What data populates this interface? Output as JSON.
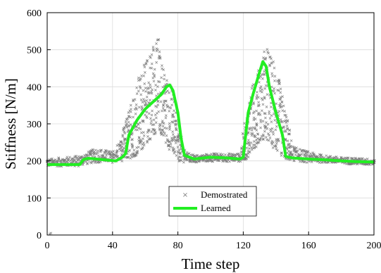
{
  "chart_data": {
    "type": "line",
    "xlabel": "Time step",
    "ylabel": "Stiffness [N/m]",
    "xlim": [
      0,
      200
    ],
    "ylim": [
      0,
      600
    ],
    "x_ticks": [
      "0",
      "40",
      "80",
      "120",
      "160",
      "200"
    ],
    "y_ticks": [
      "0",
      "100",
      "200",
      "300",
      "400",
      "500",
      "600"
    ],
    "grid": true,
    "legend_placement": "bottom-center",
    "colors": {
      "demonstrated": "#7f7f7f",
      "learned": "#22ee22"
    },
    "series": [
      {
        "name": "Demostrated",
        "style": "cross-markers",
        "envelope_note_free": true,
        "x": [
          0,
          10,
          20,
          25,
          30,
          40,
          45,
          50,
          55,
          60,
          65,
          68,
          70,
          75,
          78,
          80,
          85,
          90,
          100,
          110,
          118,
          122,
          125,
          130,
          133,
          135,
          140,
          145,
          150,
          160,
          170,
          180,
          190,
          200
        ],
        "low": [
          185,
          185,
          185,
          192,
          195,
          195,
          198,
          205,
          215,
          240,
          270,
          280,
          270,
          230,
          215,
          200,
          195,
          195,
          198,
          198,
          198,
          205,
          220,
          250,
          260,
          250,
          225,
          205,
          200,
          195,
          195,
          192,
          190,
          188
        ],
        "high": [
          205,
          210,
          215,
          225,
          235,
          225,
          260,
          340,
          420,
          470,
          530,
          540,
          470,
          420,
          370,
          290,
          225,
          215,
          220,
          220,
          220,
          330,
          400,
          460,
          510,
          505,
          460,
          360,
          240,
          225,
          215,
          210,
          208,
          205
        ]
      },
      {
        "name": "Learned",
        "style": "line",
        "x": [
          0,
          20,
          22,
          25,
          30,
          35,
          42,
          46,
          48,
          50,
          55,
          60,
          65,
          70,
          73,
          75,
          77,
          80,
          82,
          84,
          90,
          100,
          110,
          118,
          120,
          123,
          126,
          130,
          132,
          134,
          136,
          140,
          144,
          146,
          150,
          160,
          170,
          180,
          190,
          200
        ],
        "y": [
          190,
          190,
          203,
          207,
          205,
          203,
          200,
          210,
          220,
          270,
          310,
          340,
          360,
          380,
          400,
          405,
          390,
          330,
          260,
          215,
          205,
          210,
          208,
          205,
          210,
          330,
          380,
          440,
          468,
          455,
          400,
          330,
          270,
          212,
          208,
          205,
          203,
          200,
          198,
          197
        ]
      }
    ]
  }
}
